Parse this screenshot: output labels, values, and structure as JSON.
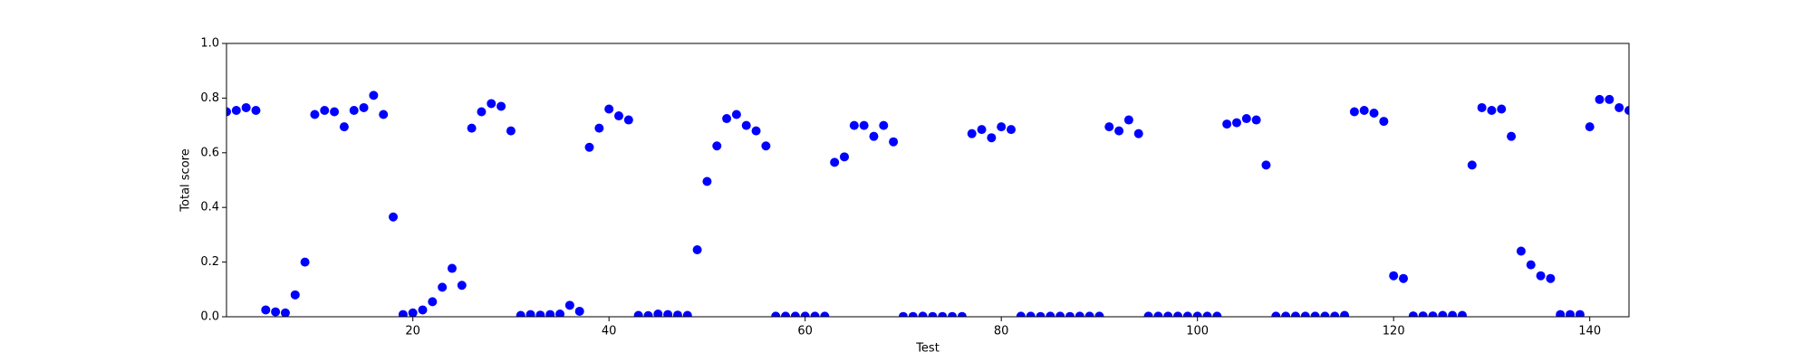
{
  "chart_data": {
    "type": "scatter",
    "xlabel": "Test",
    "ylabel": "Total score",
    "xlim": [
      1,
      144
    ],
    "ylim": [
      0,
      1
    ],
    "xticks": [
      20,
      40,
      60,
      80,
      100,
      120,
      140
    ],
    "yticks": [
      {
        "value": 0,
        "label": "0.0"
      },
      0.2,
      0.4,
      0.6,
      0.8,
      {
        "value": 1,
        "label": "1.0"
      }
    ],
    "grid": false,
    "series": [
      {
        "color": "#0000ff",
        "x": [
          1,
          2,
          3,
          4,
          5,
          6,
          7,
          8,
          9,
          10,
          11,
          12,
          13,
          14,
          15,
          16,
          17,
          18,
          19,
          20,
          21,
          22,
          23,
          24,
          25,
          26,
          27,
          28,
          29,
          30,
          31,
          32,
          33,
          34,
          35,
          36,
          37,
          38,
          39,
          40,
          41,
          42,
          43,
          44,
          45,
          46,
          47,
          48,
          49,
          50,
          51,
          52,
          53,
          54,
          55,
          56,
          57,
          58,
          59,
          60,
          61,
          62,
          63,
          64,
          65,
          66,
          67,
          68,
          69,
          70,
          71,
          72,
          73,
          74,
          75,
          76,
          77,
          78,
          79,
          80,
          81,
          82,
          83,
          84,
          85,
          86,
          87,
          88,
          89,
          90,
          91,
          92,
          93,
          94,
          95,
          96,
          97,
          98,
          99,
          100,
          101,
          102,
          103,
          104,
          105,
          106,
          107,
          108,
          109,
          110,
          111,
          112,
          113,
          114,
          115,
          116,
          117,
          118,
          119,
          120,
          121,
          122,
          123,
          124,
          125,
          126,
          127,
          128,
          129,
          130,
          131,
          132,
          133,
          134,
          135,
          136,
          137,
          138,
          139,
          140,
          141,
          142,
          143,
          144
        ],
        "values": [
          0.75,
          0.755,
          0.765,
          0.755,
          0.025,
          0.018,
          0.014,
          0.08,
          0.2,
          0.74,
          0.755,
          0.75,
          0.695,
          0.755,
          0.765,
          0.81,
          0.74,
          0.365,
          0.008,
          0.014,
          0.025,
          0.055,
          0.108,
          0.177,
          0.115,
          0.69,
          0.75,
          0.78,
          0.77,
          0.68,
          0.005,
          0.008,
          0.006,
          0.008,
          0.01,
          0.042,
          0.02,
          0.62,
          0.69,
          0.76,
          0.735,
          0.72,
          0.005,
          0.004,
          0.01,
          0.008,
          0.006,
          0.005,
          0.245,
          0.495,
          0.625,
          0.725,
          0.74,
          0.7,
          0.68,
          0.625,
          0.002,
          0.002,
          0.002,
          0.002,
          0.002,
          0.002,
          0.565,
          0.585,
          0.7,
          0.7,
          0.66,
          0.7,
          0.64,
          0.001,
          0.001,
          0.002,
          0.001,
          0.001,
          0.001,
          0.001,
          0.67,
          0.685,
          0.655,
          0.695,
          0.685,
          0.002,
          0.002,
          0.001,
          0.002,
          0.002,
          0.001,
          0.002,
          0.002,
          0.002,
          0.695,
          0.68,
          0.72,
          0.67,
          0.002,
          0.002,
          0.002,
          0.002,
          0.002,
          0.002,
          0.002,
          0.002,
          0.705,
          0.71,
          0.725,
          0.72,
          0.555,
          0.002,
          0.002,
          0.002,
          0.002,
          0.002,
          0.002,
          0.002,
          0.005,
          0.75,
          0.755,
          0.745,
          0.715,
          0.15,
          0.14,
          0.003,
          0.003,
          0.003,
          0.005,
          0.005,
          0.005,
          0.555,
          0.765,
          0.755,
          0.76,
          0.66,
          0.24,
          0.19,
          0.15,
          0.14,
          0.008,
          0.008,
          0.008,
          0.695,
          0.795,
          0.795,
          0.765,
          0.755
        ]
      }
    ]
  }
}
